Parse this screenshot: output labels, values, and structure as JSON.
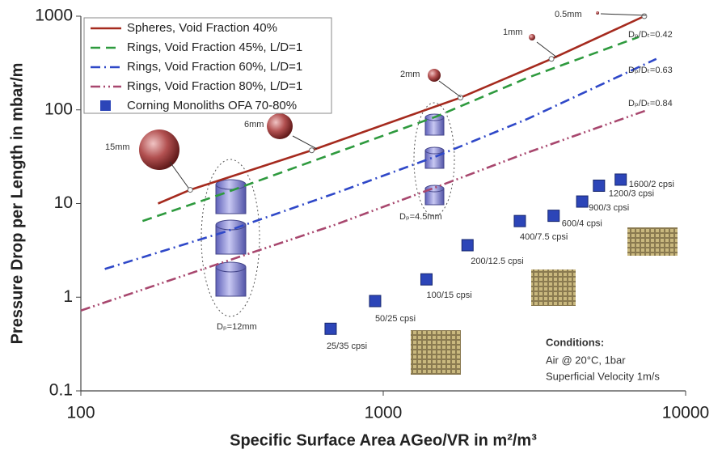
{
  "chart_data": {
    "type": "line",
    "x_label": "Specific Surface Area AGeo/VR in m²/m³",
    "y_label": "Pressure Drop per Length in mbar/m",
    "log_x": true,
    "log_y": true,
    "grid": false,
    "legend": "upper left",
    "xlim": [
      100,
      10000
    ],
    "xticks": [
      100,
      1000,
      10000
    ],
    "ylim": [
      0.1,
      1000
    ],
    "yticks": [
      0.1,
      1,
      10,
      100,
      1000
    ],
    "series": [
      {
        "name": "Spheres, Void Fraction 40%",
        "color": "#a52a1e",
        "style": "solid",
        "x": [
          180,
          230,
          580,
          1800,
          3600,
          7300
        ],
        "values": [
          10,
          14,
          37,
          135,
          350,
          1000
        ]
      },
      {
        "name": "Rings, Void Fraction 45%, L/D=1",
        "color": "#2e9a3e",
        "style": "dash",
        "x": [
          160,
          300,
          700,
          1500,
          3000,
          7000
        ],
        "values": [
          6.5,
          13,
          35,
          85,
          220,
          600
        ]
      },
      {
        "name": "Rings, Void Fraction 60%, L/D=1",
        "color": "#2f48c8",
        "style": "dashdot",
        "x": [
          120,
          300,
          700,
          1500,
          3000,
          8000
        ],
        "values": [
          2,
          5,
          13,
          32,
          80,
          350
        ]
      },
      {
        "name": "Rings, Void Fraction 80%, L/D=1",
        "color": "#a8476e",
        "style": "dashdotdot",
        "x": [
          100,
          300,
          700,
          1500,
          3000,
          7500
        ],
        "values": [
          0.72,
          2.4,
          6,
          15,
          35,
          100
        ]
      },
      {
        "name": "Corning Monoliths OFA 70-80%",
        "color": "#2c45b8",
        "style": "square",
        "x": [
          670,
          940,
          1390,
          1900,
          2830,
          3660,
          4550,
          5170,
          6100
        ],
        "values": [
          0.46,
          0.91,
          1.55,
          3.59,
          6.5,
          7.4,
          10.5,
          15.5,
          18
        ],
        "labels": [
          "25/35 cpsi",
          "50/25 cpsi",
          "100/15 cpsi",
          "200/12.5 cpsi",
          "400/7.5 cpsi",
          "600/4 cpsi",
          "900/3 cpsi",
          "1200/3 cpsi",
          "1600/2 cpsi"
        ]
      }
    ],
    "annotations": [
      "15mm",
      "6mm",
      "2mm",
      "1mm",
      "0.5mm",
      "Dₚ/Dₜ=0.42",
      "Dₚ/Dₜ=0.63",
      "Dₚ/Dₜ=0.84",
      "Dₚ=12mm",
      "Dₚ=4.5mm"
    ],
    "conditions": {
      "title": "Conditions:",
      "lines": [
        "Air @ 20°C, 1bar",
        "Superficial Velocity 1m/s"
      ]
    }
  }
}
